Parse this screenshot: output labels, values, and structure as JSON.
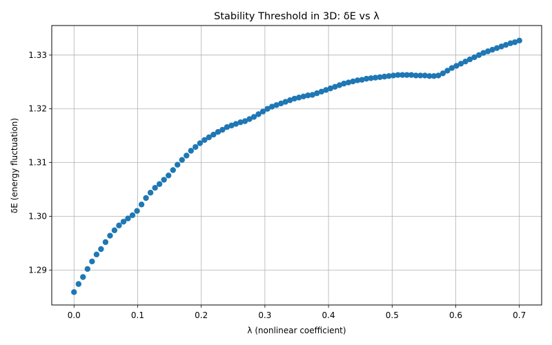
{
  "chart_data": {
    "type": "scatter",
    "title": "Stability Threshold in 3D: δE vs λ",
    "xlabel": "λ (nonlinear coefficient)",
    "ylabel": "δE (energy fluctuation)",
    "xlim": [
      -0.035,
      0.735
    ],
    "ylim": [
      1.2835,
      1.3355
    ],
    "xticks": [
      0.0,
      0.1,
      0.2,
      0.3,
      0.4,
      0.5,
      0.6,
      0.7
    ],
    "xtick_labels": [
      "0.0",
      "0.1",
      "0.2",
      "0.3",
      "0.4",
      "0.5",
      "0.6",
      "0.7"
    ],
    "yticks": [
      1.29,
      1.3,
      1.31,
      1.32,
      1.33
    ],
    "ytick_labels": [
      "1.29",
      "1.30",
      "1.31",
      "1.32",
      "1.33"
    ],
    "grid": true,
    "marker_color": "#1f77b4",
    "series": [
      {
        "x": [
          0.0,
          0.0071,
          0.0141,
          0.0212,
          0.0283,
          0.0354,
          0.0424,
          0.0495,
          0.0566,
          0.0636,
          0.0707,
          0.0778,
          0.0848,
          0.0919,
          0.099,
          0.1061,
          0.1131,
          0.1202,
          0.1273,
          0.1343,
          0.1414,
          0.1485,
          0.1556,
          0.1626,
          0.1697,
          0.1768,
          0.1838,
          0.1909,
          0.198,
          0.2051,
          0.2121,
          0.2192,
          0.2263,
          0.2333,
          0.2404,
          0.2475,
          0.2545,
          0.2616,
          0.2687,
          0.2758,
          0.2828,
          0.2899,
          0.297,
          0.304,
          0.3111,
          0.3182,
          0.3253,
          0.3323,
          0.3394,
          0.3465,
          0.3535,
          0.3606,
          0.3677,
          0.3747,
          0.3818,
          0.3889,
          0.396,
          0.403,
          0.4101,
          0.4172,
          0.4242,
          0.4313,
          0.4384,
          0.4455,
          0.4525,
          0.4596,
          0.4667,
          0.4737,
          0.4808,
          0.4879,
          0.4949,
          0.502,
          0.5091,
          0.5162,
          0.5232,
          0.5303,
          0.5374,
          0.5444,
          0.5515,
          0.5586,
          0.5657,
          0.5727,
          0.5798,
          0.5869,
          0.5939,
          0.601,
          0.6081,
          0.6152,
          0.6222,
          0.6293,
          0.6364,
          0.6434,
          0.6505,
          0.6576,
          0.6646,
          0.6717,
          0.6788,
          0.6859,
          0.6929,
          0.7
        ],
        "y": [
          1.2859,
          1.2874,
          1.2887,
          1.2902,
          1.2916,
          1.2929,
          1.2939,
          1.2952,
          1.2964,
          1.2974,
          1.2983,
          1.299,
          1.2996,
          1.3002,
          1.301,
          1.3022,
          1.3034,
          1.3044,
          1.3053,
          1.306,
          1.3068,
          1.3076,
          1.3086,
          1.3096,
          1.3105,
          1.3113,
          1.3122,
          1.3129,
          1.3136,
          1.3142,
          1.3147,
          1.3152,
          1.3157,
          1.3161,
          1.3166,
          1.3169,
          1.3172,
          1.3175,
          1.3177,
          1.3181,
          1.3185,
          1.319,
          1.3195,
          1.32,
          1.3204,
          1.3207,
          1.321,
          1.3213,
          1.3216,
          1.3219,
          1.3221,
          1.3223,
          1.3225,
          1.3226,
          1.3229,
          1.3232,
          1.3235,
          1.3238,
          1.3241,
          1.3244,
          1.3247,
          1.3249,
          1.3251,
          1.3253,
          1.3254,
          1.3256,
          1.3257,
          1.3258,
          1.3259,
          1.326,
          1.3261,
          1.3262,
          1.3263,
          1.3263,
          1.3263,
          1.3263,
          1.3262,
          1.3262,
          1.3262,
          1.3261,
          1.3261,
          1.3262,
          1.3266,
          1.3271,
          1.3276,
          1.328,
          1.3284,
          1.3288,
          1.3292,
          1.3296,
          1.33,
          1.3304,
          1.3307,
          1.331,
          1.3313,
          1.3316,
          1.3319,
          1.3322,
          1.3324,
          1.3327
        ]
      }
    ]
  }
}
